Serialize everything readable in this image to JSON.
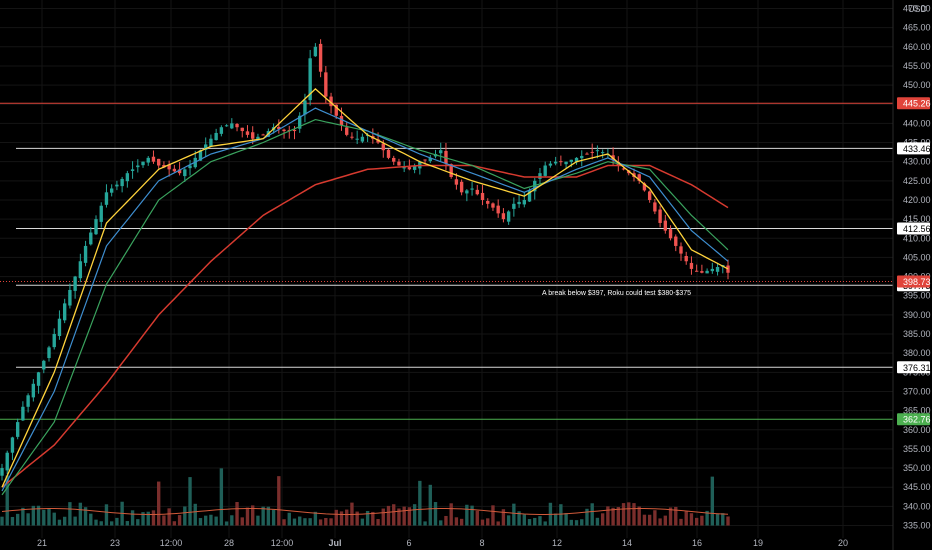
{
  "chart_data": {
    "type": "candlestick",
    "currency": "USD",
    "y_range": [
      332,
      474
    ],
    "y_ticks": [
      "470.00",
      "465.00",
      "460.00",
      "455.00",
      "450.00",
      "445.00",
      "440.00",
      "435.00",
      "430.00",
      "425.00",
      "420.00",
      "415.00",
      "410.00",
      "405.00",
      "400.00",
      "395.00",
      "390.00",
      "385.00",
      "380.00",
      "375.00",
      "370.00",
      "365.00",
      "360.00",
      "355.00",
      "350.00",
      "345.00",
      "340.00",
      "335.00"
    ],
    "x_ticks": [
      "21",
      "23",
      "12:00",
      "28",
      "12:00",
      "Jul",
      "6",
      "8",
      "12",
      "14",
      "16",
      "19",
      "20"
    ],
    "horizontal_levels": [
      {
        "value": 445.26,
        "label": "445.26",
        "color": "#e0443a",
        "tag_bg": "#e0443a",
        "tag_fg": "#ffffff"
      },
      {
        "value": 433.46,
        "label": "433.46",
        "color": "#d8d8d8",
        "tag_bg": "#ffffff",
        "tag_fg": "#000000"
      },
      {
        "value": 412.56,
        "label": "412.56",
        "color": "#d8d8d8",
        "tag_bg": "#ffffff",
        "tag_fg": "#000000"
      },
      {
        "value": 397.73,
        "label": "397.73",
        "color": "#d8d8d8",
        "tag_bg": "#ffffff",
        "tag_fg": "#000000"
      },
      {
        "value": 376.31,
        "label": "376.31",
        "color": "#d8d8d8",
        "tag_bg": "#ffffff",
        "tag_fg": "#000000"
      },
      {
        "value": 362.76,
        "label": "362.76",
        "color": "#4caf50",
        "tag_bg": "#4caf50",
        "tag_fg": "#ffffff"
      }
    ],
    "last_price": {
      "value": 398.73,
      "label": "398.73",
      "color": "#e0443a"
    },
    "annotation": "A break below $397, Roku could test $380-$375",
    "close_path": [
      [
        0,
        350
      ],
      [
        2,
        358
      ],
      [
        4,
        366
      ],
      [
        6,
        372
      ],
      [
        8,
        378
      ],
      [
        10,
        385
      ],
      [
        12,
        393
      ],
      [
        14,
        400
      ],
      [
        16,
        408
      ],
      [
        18,
        415
      ],
      [
        20,
        422
      ],
      [
        22,
        424
      ],
      [
        24,
        427
      ],
      [
        26,
        429
      ],
      [
        28,
        431
      ],
      [
        30,
        429
      ],
      [
        32,
        428
      ],
      [
        34,
        427
      ],
      [
        36,
        429
      ],
      [
        38,
        433
      ],
      [
        40,
        436
      ],
      [
        42,
        439
      ],
      [
        44,
        440
      ],
      [
        46,
        438
      ],
      [
        48,
        436
      ],
      [
        50,
        437
      ],
      [
        52,
        439
      ],
      [
        54,
        438
      ],
      [
        56,
        438
      ],
      [
        58,
        446
      ],
      [
        59,
        457
      ],
      [
        60,
        460
      ],
      [
        62,
        447
      ],
      [
        64,
        442
      ],
      [
        66,
        437
      ],
      [
        68,
        436
      ],
      [
        70,
        437
      ],
      [
        72,
        435
      ],
      [
        74,
        431
      ],
      [
        76,
        429
      ],
      [
        78,
        428
      ],
      [
        80,
        430
      ],
      [
        82,
        431
      ],
      [
        84,
        433
      ],
      [
        86,
        426
      ],
      [
        88,
        422
      ],
      [
        90,
        423
      ],
      [
        92,
        420
      ],
      [
        94,
        418
      ],
      [
        96,
        415
      ],
      [
        98,
        419
      ],
      [
        100,
        420
      ],
      [
        102,
        425
      ],
      [
        104,
        429
      ],
      [
        106,
        430
      ],
      [
        108,
        430
      ],
      [
        110,
        431
      ],
      [
        112,
        432
      ],
      [
        114,
        433
      ],
      [
        116,
        432
      ],
      [
        118,
        429
      ],
      [
        120,
        427
      ],
      [
        122,
        425
      ],
      [
        124,
        420
      ],
      [
        126,
        414
      ],
      [
        128,
        410
      ],
      [
        130,
        406
      ],
      [
        132,
        402
      ],
      [
        134,
        401
      ],
      [
        136,
        402
      ],
      [
        138,
        403
      ],
      [
        139,
        401
      ]
    ],
    "ema_fast": [
      [
        0,
        345
      ],
      [
        10,
        375
      ],
      [
        20,
        414
      ],
      [
        30,
        428
      ],
      [
        40,
        434
      ],
      [
        50,
        436
      ],
      [
        60,
        449
      ],
      [
        70,
        437
      ],
      [
        80,
        430
      ],
      [
        90,
        425
      ],
      [
        100,
        421
      ],
      [
        110,
        430
      ],
      [
        116,
        432
      ],
      [
        124,
        423
      ],
      [
        132,
        407
      ],
      [
        139,
        402
      ]
    ],
    "ema_mid": [
      [
        0,
        344
      ],
      [
        10,
        370
      ],
      [
        20,
        408
      ],
      [
        30,
        425
      ],
      [
        40,
        432
      ],
      [
        50,
        436
      ],
      [
        60,
        444
      ],
      [
        70,
        438
      ],
      [
        80,
        432
      ],
      [
        90,
        427
      ],
      [
        100,
        422
      ],
      [
        110,
        428
      ],
      [
        116,
        431
      ],
      [
        124,
        426
      ],
      [
        132,
        412
      ],
      [
        139,
        404
      ]
    ],
    "ema_slow": [
      [
        0,
        343
      ],
      [
        10,
        362
      ],
      [
        20,
        398
      ],
      [
        30,
        420
      ],
      [
        40,
        430
      ],
      [
        50,
        435
      ],
      [
        60,
        441
      ],
      [
        70,
        438
      ],
      [
        80,
        433
      ],
      [
        90,
        429
      ],
      [
        100,
        423
      ],
      [
        110,
        427
      ],
      [
        116,
        430
      ],
      [
        124,
        428
      ],
      [
        132,
        416
      ],
      [
        139,
        407
      ]
    ],
    "ma_long": [
      [
        0,
        345
      ],
      [
        10,
        356
      ],
      [
        20,
        372
      ],
      [
        30,
        390
      ],
      [
        40,
        404
      ],
      [
        50,
        416
      ],
      [
        60,
        424
      ],
      [
        70,
        428
      ],
      [
        80,
        429
      ],
      [
        90,
        429
      ],
      [
        100,
        426
      ],
      [
        110,
        426
      ],
      [
        116,
        429
      ],
      [
        124,
        429
      ],
      [
        132,
        424
      ],
      [
        139,
        418
      ]
    ],
    "volume_baseline": 335,
    "volume_max_height": 36,
    "colors": {
      "up": "#26a69a",
      "down": "#ef5350",
      "ema_fast": "#ffd33c",
      "ema_mid": "#3e8ed0",
      "ema_slow": "#3aa35e",
      "ma_long": "#d63a2f",
      "grid": "#1e1e1e",
      "axis_text": "#b2b5be"
    }
  }
}
